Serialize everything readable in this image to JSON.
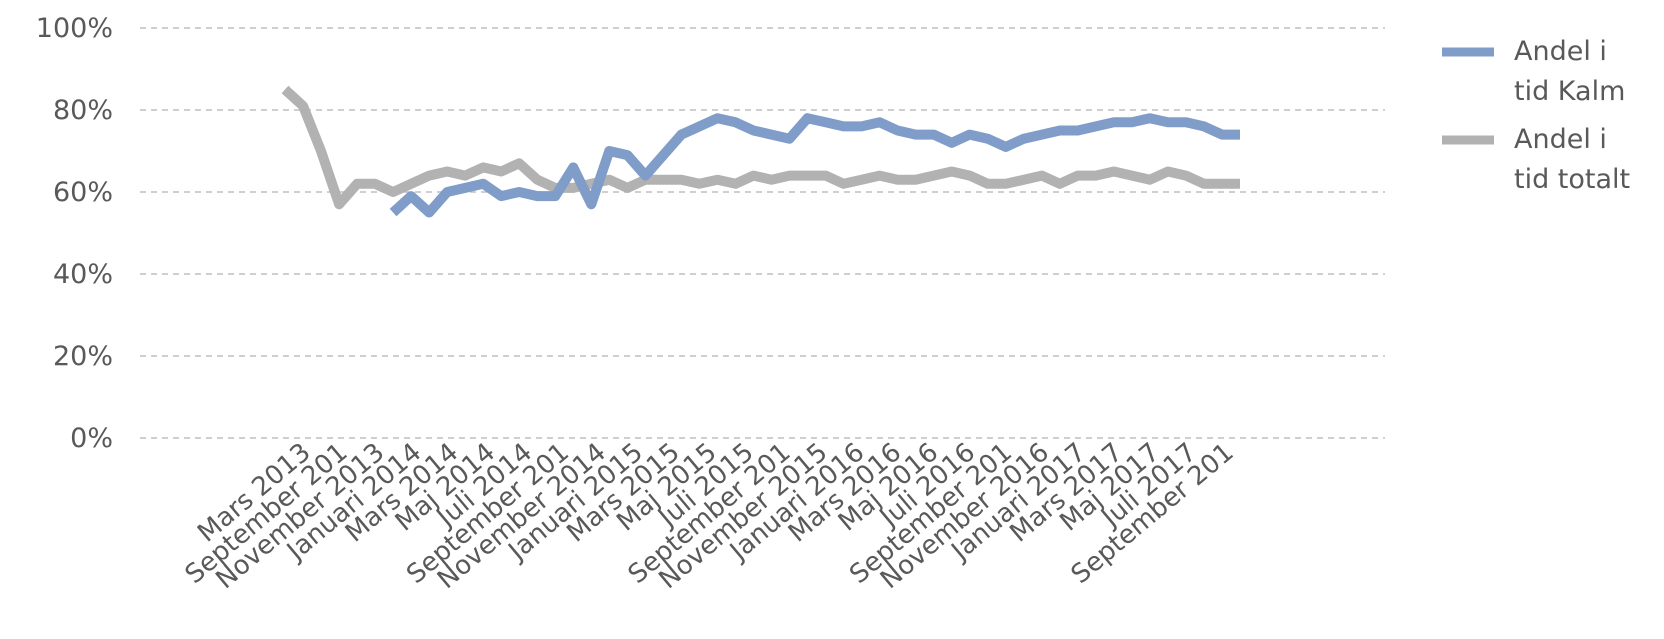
{
  "chart_data": {
    "type": "line",
    "title": "",
    "xlabel": "",
    "ylabel": "",
    "ylim": [
      0,
      1
    ],
    "yticks": [
      "0%",
      "20%",
      "40%",
      "60%",
      "80%",
      "100%"
    ],
    "grid": true,
    "legend_position": "right",
    "x_tick_labels": [
      "Mars 2013",
      "September 201",
      "November 2013",
      "Januari 2014",
      "Mars 2014",
      "Maj 2014",
      "Juli 2014",
      "September 201",
      "November 2014",
      "Januari 2015",
      "Mars 2015",
      "Maj 2015",
      "Juli 2015",
      "September 201",
      "November 2015",
      "Januari 2016",
      "Mars 2016",
      "Maj 2016",
      "Juli 2016",
      "September 201",
      "November 2016",
      "Januari 2017",
      "Mars 2017",
      "Maj 2017",
      "Juli 2017",
      "September 201"
    ],
    "series": [
      {
        "name_lines": [
          "Andel i",
          "tid Kalm"
        ],
        "color": "#7f9dc8",
        "values": [
          null,
          null,
          null,
          null,
          null,
          null,
          0.55,
          0.59,
          0.55,
          0.6,
          0.61,
          0.62,
          0.59,
          0.6,
          0.59,
          0.59,
          0.66,
          0.57,
          0.7,
          0.69,
          0.64,
          0.69,
          0.74,
          0.76,
          0.78,
          0.77,
          0.75,
          0.74,
          0.73,
          0.78,
          0.77,
          0.76,
          0.76,
          0.77,
          0.75,
          0.74,
          0.74,
          0.72,
          0.74,
          0.73,
          0.71,
          0.73,
          0.74,
          0.75,
          0.75,
          0.76,
          0.77,
          0.77,
          0.78,
          0.77,
          0.77,
          0.76,
          0.74,
          0.74
        ]
      },
      {
        "name_lines": [
          "Andel i",
          "tid totalt"
        ],
        "color": "#b2b2b2",
        "values": [
          0.85,
          0.81,
          0.7,
          0.57,
          0.62,
          0.62,
          0.6,
          0.62,
          0.64,
          0.65,
          0.64,
          0.66,
          0.65,
          0.67,
          0.63,
          0.61,
          0.61,
          0.62,
          0.63,
          0.61,
          0.63,
          0.63,
          0.63,
          0.62,
          0.63,
          0.62,
          0.64,
          0.63,
          0.64,
          0.64,
          0.64,
          0.62,
          0.63,
          0.64,
          0.63,
          0.63,
          0.64,
          0.65,
          0.64,
          0.62,
          0.62,
          0.63,
          0.64,
          0.62,
          0.64,
          0.64,
          0.65,
          0.64,
          0.63,
          0.65,
          0.64,
          0.62,
          0.62,
          0.62
        ]
      }
    ]
  }
}
